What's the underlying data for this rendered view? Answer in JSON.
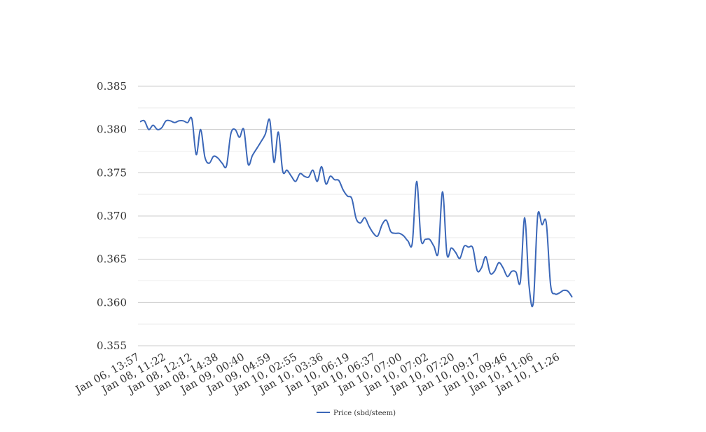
{
  "chart_data": {
    "type": "line",
    "title": "",
    "xlabel": "",
    "ylabel": "",
    "ylim": [
      0.355,
      0.385
    ],
    "yticks": [
      0.355,
      0.36,
      0.365,
      0.37,
      0.375,
      0.38,
      0.385
    ],
    "ytick_labels": [
      "0.355",
      "0.360",
      "0.365",
      "0.370",
      "0.375",
      "0.380",
      "0.385"
    ],
    "grid": true,
    "legend_position": "bottom",
    "x_tick_labels": [
      "Jan 06, 13:57",
      "Jan 08, 11:22",
      "Jan 08, 12:12",
      "Jan 08, 14:38",
      "Jan 09, 00:40",
      "Jan 09, 04:59",
      "Jan 10, 02:55",
      "Jan 10, 03:36",
      "Jan 10, 06:19",
      "Jan 10, 06:37",
      "Jan 10, 07:00",
      "Jan 10, 07:02",
      "Jan 10, 07:20",
      "Jan 10, 09:17",
      "Jan 10, 09:46",
      "Jan 10, 11:06",
      "Jan 10, 11:26"
    ],
    "series": [
      {
        "name": "Price (sbd/steem)",
        "color": "#3b67b8",
        "values": [
          0.3809,
          0.381,
          0.38,
          0.3805,
          0.38,
          0.3802,
          0.381,
          0.381,
          0.3808,
          0.381,
          0.381,
          0.3808,
          0.3812,
          0.3771,
          0.38,
          0.3768,
          0.3761,
          0.3769,
          0.3767,
          0.3761,
          0.3758,
          0.3795,
          0.38,
          0.3791,
          0.38,
          0.376,
          0.377,
          0.3778,
          0.3786,
          0.3795,
          0.3811,
          0.3762,
          0.3797,
          0.3752,
          0.3753,
          0.3746,
          0.374,
          0.3749,
          0.3746,
          0.3745,
          0.3753,
          0.374,
          0.3757,
          0.3737,
          0.3746,
          0.3742,
          0.3741,
          0.373,
          0.3723,
          0.372,
          0.3697,
          0.3692,
          0.3698,
          0.3688,
          0.368,
          0.3677,
          0.369,
          0.3695,
          0.3682,
          0.368,
          0.368,
          0.3677,
          0.3671,
          0.3669,
          0.374,
          0.3673,
          0.3673,
          0.3673,
          0.3665,
          0.3658,
          0.3728,
          0.3656,
          0.3663,
          0.3658,
          0.3651,
          0.3665,
          0.3664,
          0.3663,
          0.3637,
          0.364,
          0.3653,
          0.3634,
          0.3636,
          0.3646,
          0.364,
          0.363,
          0.3636,
          0.3635,
          0.3624,
          0.3698,
          0.362,
          0.36,
          0.37,
          0.369,
          0.3692,
          0.362,
          0.361,
          0.3611,
          0.3614,
          0.3613,
          0.3606
        ]
      }
    ]
  }
}
